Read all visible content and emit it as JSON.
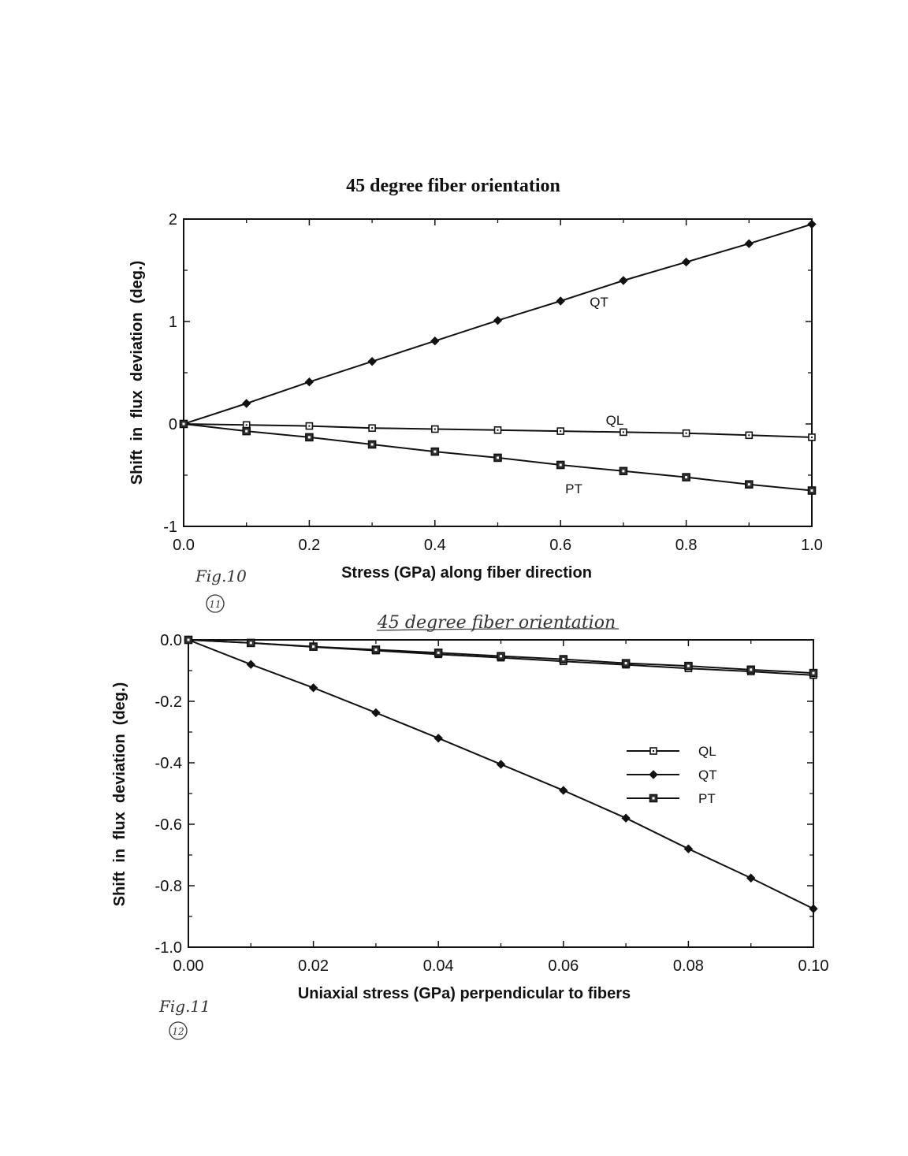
{
  "chart_data": [
    {
      "type": "line",
      "title": "45 degree fiber orientation",
      "xlabel": "Stress (GPa) along fiber direction",
      "ylabel": "Shift  in  flux  deviation  (deg.)",
      "xlim": [
        0,
        1.0
      ],
      "ylim": [
        -1,
        2
      ],
      "x_ticks": [
        "0.0",
        "0.2",
        "0.4",
        "0.6",
        "0.8",
        "1.0"
      ],
      "y_ticks": [
        "-1",
        "0",
        "1",
        "2"
      ],
      "x": [
        0,
        0.1,
        0.2,
        0.3,
        0.4,
        0.5,
        0.6,
        0.7,
        0.8,
        0.9,
        1.0
      ],
      "series": [
        {
          "name": "QT",
          "marker": "diamond-filled",
          "values": [
            0,
            0.2,
            0.41,
            0.61,
            0.81,
            1.01,
            1.2,
            1.4,
            1.58,
            1.76,
            1.95
          ]
        },
        {
          "name": "QL",
          "marker": "square-open",
          "values": [
            0,
            -0.01,
            -0.02,
            -0.04,
            -0.05,
            -0.06,
            -0.07,
            -0.08,
            -0.09,
            -0.11,
            -0.13
          ]
        },
        {
          "name": "PT",
          "marker": "square-filled",
          "values": [
            0,
            -0.07,
            -0.13,
            -0.2,
            -0.27,
            -0.33,
            -0.4,
            -0.46,
            -0.52,
            -0.59,
            -0.65
          ]
        }
      ],
      "annotations": [
        "QT",
        "QL",
        "PT"
      ],
      "legend": "none",
      "grid": false
    },
    {
      "type": "line",
      "title": "45 degree fiber orientation",
      "xlabel": "Uniaxial stress (GPa) perpendicular to fibers",
      "ylabel": "Shift  in  flux  deviation  (deg.)",
      "xlim": [
        0,
        0.1
      ],
      "ylim": [
        -1.0,
        0.0
      ],
      "x_ticks": [
        "0.00",
        "0.02",
        "0.04",
        "0.06",
        "0.08",
        "0.10"
      ],
      "y_ticks": [
        "0.0",
        "-0.2",
        "-0.4",
        "-0.6",
        "-0.8",
        "-1.0"
      ],
      "x": [
        0,
        0.01,
        0.02,
        0.03,
        0.04,
        0.05,
        0.06,
        0.07,
        0.08,
        0.09,
        0.1
      ],
      "series": [
        {
          "name": "QL",
          "marker": "square-open",
          "values": [
            0,
            -0.01,
            -0.023,
            -0.035,
            -0.047,
            -0.058,
            -0.07,
            -0.081,
            -0.093,
            -0.103,
            -0.115
          ]
        },
        {
          "name": "QT",
          "marker": "diamond-filled",
          "values": [
            0,
            -0.08,
            -0.156,
            -0.237,
            -0.32,
            -0.405,
            -0.49,
            -0.58,
            -0.68,
            -0.775,
            -0.875
          ]
        },
        {
          "name": "PT",
          "marker": "square-filled",
          "values": [
            0,
            -0.01,
            -0.022,
            -0.032,
            -0.042,
            -0.053,
            -0.063,
            -0.076,
            -0.085,
            -0.097,
            -0.108
          ]
        }
      ],
      "legend": "right"
    }
  ],
  "handwritten": {
    "fig10_label": "Fig.10",
    "fig10_circled": "11",
    "fig11_label": "Fig.11",
    "fig11_circled": "12"
  }
}
